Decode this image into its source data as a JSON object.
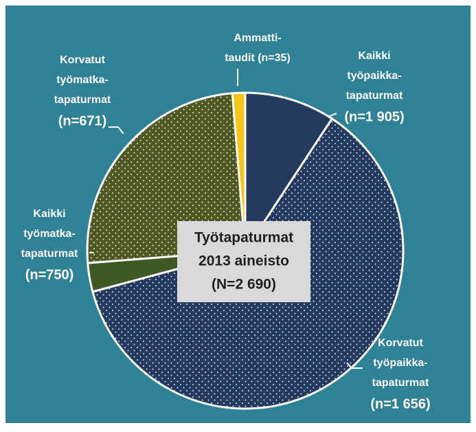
{
  "chart_data": {
    "type": "pie",
    "center_label": [
      "Työtapaturmat",
      "2013 aineisto",
      "(N=2 690)"
    ],
    "categories": [
      [
        "Kaikki",
        "työpaikka-",
        "tapaturmat",
        "(n=1 905)"
      ],
      [
        "Korvatut",
        "työpaikka-",
        "tapaturmat",
        "(n=1 656)"
      ],
      [
        "Kaikki",
        "työmatka-",
        "tapaturmat",
        "(n=750)"
      ],
      [
        "Korvatut",
        "työmatka-",
        "tapaturmat",
        "(n=671)"
      ],
      [
        "Ammatti-",
        "taudit (n=35)"
      ]
    ],
    "values": [
      249,
      1656,
      79,
      671,
      35
    ],
    "colors": [
      "#243a5e",
      "#243a5e",
      "#3d5a24",
      "#4e5a22",
      "#f5c518"
    ],
    "dotted": [
      false,
      true,
      false,
      true,
      false
    ]
  }
}
